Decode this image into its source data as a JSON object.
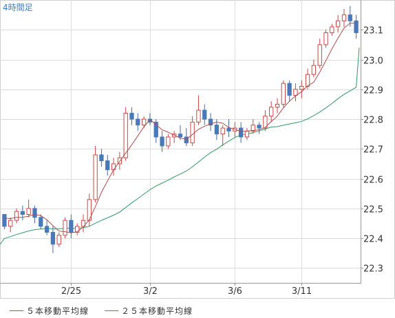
{
  "chart_data": {
    "type": "candlestick",
    "title": "4時間足",
    "y_ticks": [
      "22.3",
      "22.4",
      "22.5",
      "22.6",
      "22.7",
      "22.8",
      "22.9",
      "23.0",
      "23.1"
    ],
    "x_ticks": [
      "2/25",
      "3/2",
      "3/6",
      "3/11"
    ],
    "ylim": [
      22.25,
      23.2
    ],
    "grid": true,
    "legend_placement": "bottom",
    "series": [
      {
        "name": "５本移動平均線",
        "color": "#b24a4a"
      },
      {
        "name": "２５本移動平均線",
        "color": "#2e9a66"
      }
    ],
    "colors": {
      "up": "#cc4444",
      "down": "#4a79b8",
      "wick": "#4a6a9a",
      "grid": "#dcdcdc",
      "axis": "#999999"
    },
    "candles": [
      [
        22.48,
        22.48,
        22.43,
        22.44
      ],
      [
        22.44,
        22.47,
        22.42,
        22.46
      ],
      [
        22.46,
        22.5,
        22.45,
        22.49
      ],
      [
        22.49,
        22.51,
        22.46,
        22.48
      ],
      [
        22.48,
        22.53,
        22.47,
        22.5
      ],
      [
        22.5,
        22.51,
        22.45,
        22.47
      ],
      [
        22.47,
        22.48,
        22.43,
        22.44
      ],
      [
        22.44,
        22.46,
        22.41,
        22.42
      ],
      [
        22.42,
        22.44,
        22.35,
        22.38
      ],
      [
        22.38,
        22.42,
        22.37,
        22.41
      ],
      [
        22.41,
        22.47,
        22.4,
        22.46
      ],
      [
        22.46,
        22.48,
        22.4,
        22.42
      ],
      [
        22.42,
        22.45,
        22.41,
        22.44
      ],
      [
        22.44,
        22.48,
        22.42,
        22.46
      ],
      [
        22.46,
        22.55,
        22.44,
        22.53
      ],
      [
        22.53,
        22.71,
        22.52,
        22.68
      ],
      [
        22.68,
        22.7,
        22.64,
        22.66
      ],
      [
        22.66,
        22.68,
        22.61,
        22.63
      ],
      [
        22.63,
        22.67,
        22.61,
        22.65
      ],
      [
        22.65,
        22.69,
        22.63,
        22.67
      ],
      [
        22.67,
        22.84,
        22.66,
        22.82
      ],
      [
        22.82,
        22.84,
        22.78,
        22.8
      ],
      [
        22.8,
        22.82,
        22.76,
        22.78
      ],
      [
        22.78,
        22.81,
        22.77,
        22.8
      ],
      [
        22.8,
        22.82,
        22.78,
        22.79
      ],
      [
        22.79,
        22.8,
        22.72,
        22.74
      ],
      [
        22.74,
        22.76,
        22.69,
        22.71
      ],
      [
        22.71,
        22.75,
        22.7,
        22.74
      ],
      [
        22.74,
        22.76,
        22.72,
        22.75
      ],
      [
        22.75,
        22.78,
        22.73,
        22.74
      ],
      [
        22.74,
        22.77,
        22.71,
        22.72
      ],
      [
        22.72,
        22.81,
        22.71,
        22.79
      ],
      [
        22.79,
        22.88,
        22.78,
        22.83
      ],
      [
        22.83,
        22.85,
        22.78,
        22.8
      ],
      [
        22.8,
        22.82,
        22.76,
        22.78
      ],
      [
        22.78,
        22.8,
        22.73,
        22.75
      ],
      [
        22.75,
        22.78,
        22.71,
        22.77
      ],
      [
        22.77,
        22.8,
        22.74,
        22.76
      ],
      [
        22.76,
        22.79,
        22.74,
        22.77
      ],
      [
        22.77,
        22.79,
        22.72,
        22.74
      ],
      [
        22.74,
        22.77,
        22.73,
        22.76
      ],
      [
        22.76,
        22.8,
        22.75,
        22.78
      ],
      [
        22.78,
        22.79,
        22.75,
        22.77
      ],
      [
        22.77,
        22.83,
        22.76,
        22.81
      ],
      [
        22.81,
        22.86,
        22.79,
        22.84
      ],
      [
        22.84,
        22.87,
        22.82,
        22.85
      ],
      [
        22.85,
        22.93,
        22.84,
        22.92
      ],
      [
        22.92,
        22.93,
        22.86,
        22.88
      ],
      [
        22.88,
        22.92,
        22.86,
        22.9
      ],
      [
        22.9,
        22.93,
        22.87,
        22.91
      ],
      [
        22.91,
        22.97,
        22.9,
        22.95
      ],
      [
        22.95,
        23.0,
        22.94,
        22.98
      ],
      [
        22.98,
        23.07,
        22.97,
        23.05
      ],
      [
        23.05,
        23.1,
        23.04,
        23.09
      ],
      [
        23.09,
        23.12,
        23.08,
        23.11
      ],
      [
        23.11,
        23.15,
        23.09,
        23.13
      ],
      [
        23.13,
        23.17,
        23.11,
        23.15
      ],
      [
        23.15,
        23.18,
        23.11,
        23.13
      ],
      [
        23.13,
        23.15,
        23.07,
        23.09
      ]
    ]
  }
}
